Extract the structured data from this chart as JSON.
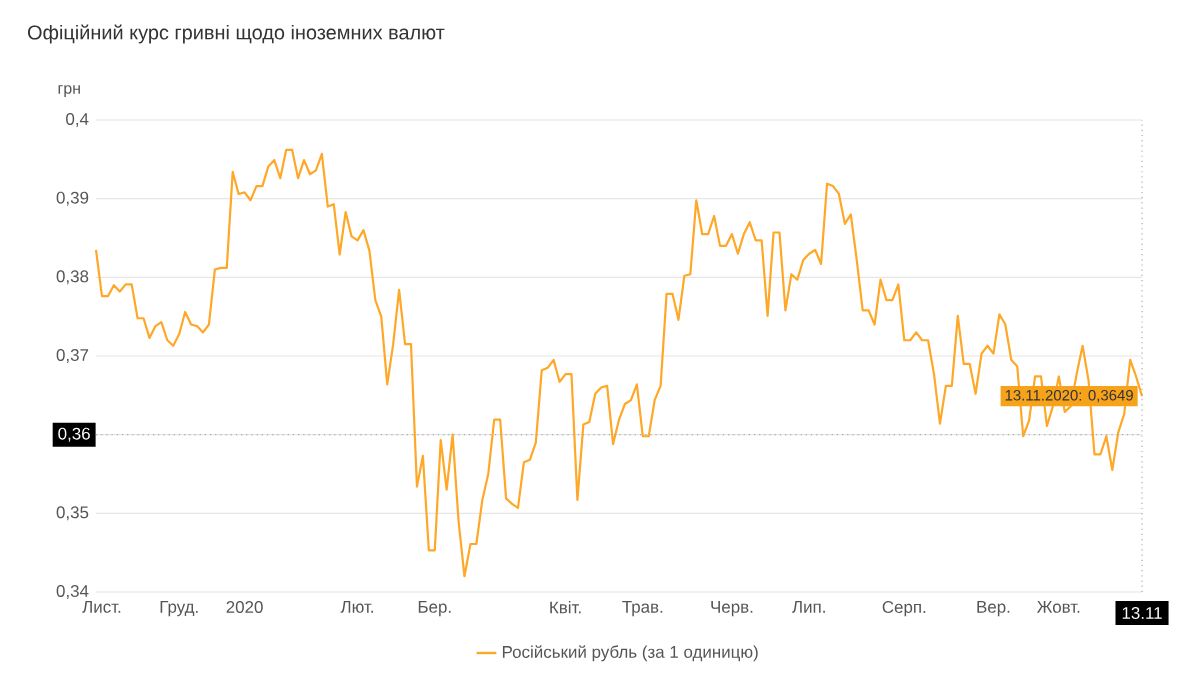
{
  "chart_data": {
    "type": "line",
    "title": "Офіційний курс гривні щодо іноземних валют",
    "ylabel": "грн",
    "categories": [
      null,
      "Лист.",
      null,
      null,
      null,
      null,
      null,
      null,
      null,
      null,
      null,
      null,
      null,
      null,
      "Груд.",
      null,
      null,
      null,
      null,
      null,
      null,
      null,
      null,
      null,
      null,
      "2020",
      null,
      null,
      null,
      null,
      null,
      null,
      null,
      null,
      null,
      null,
      null,
      null,
      null,
      null,
      null,
      null,
      null,
      null,
      "Лют.",
      null,
      null,
      null,
      null,
      null,
      null,
      null,
      null,
      null,
      null,
      null,
      null,
      "Бер.",
      null,
      null,
      null,
      null,
      null,
      null,
      null,
      null,
      null,
      null,
      null,
      null,
      null,
      null,
      null,
      null,
      null,
      null,
      null,
      null,
      null,
      "Квіт.",
      null,
      null,
      null,
      null,
      null,
      null,
      null,
      null,
      null,
      null,
      null,
      null,
      "Трав.",
      null,
      null,
      null,
      null,
      null,
      null,
      null,
      null,
      null,
      null,
      null,
      null,
      null,
      null,
      "Черв.",
      null,
      null,
      null,
      null,
      null,
      null,
      null,
      null,
      null,
      null,
      null,
      null,
      "Лип.",
      null,
      null,
      null,
      null,
      null,
      null,
      null,
      null,
      null,
      null,
      null,
      null,
      null,
      null,
      null,
      "Серп.",
      null,
      null,
      null,
      null,
      null,
      null,
      null,
      null,
      null,
      null,
      null,
      null,
      null,
      null,
      "Вер.",
      null,
      null,
      null,
      null,
      null,
      null,
      null,
      null,
      null,
      null,
      "Жовт.",
      null,
      null,
      null,
      null,
      null,
      null,
      null,
      null,
      null,
      null,
      null,
      null,
      null,
      "13.11"
    ],
    "ylim": [
      0.34,
      0.4
    ],
    "yticks": [
      {
        "value": 0.34,
        "label": "0,34"
      },
      {
        "value": 0.35,
        "label": "0,35"
      },
      {
        "value": 0.36,
        "label": "0,36"
      },
      {
        "value": 0.37,
        "label": "0,37"
      },
      {
        "value": 0.38,
        "label": "0,38"
      },
      {
        "value": 0.39,
        "label": "0,39"
      },
      {
        "value": 0.4,
        "label": "0,4"
      }
    ],
    "grid": "y",
    "legend": "bottom",
    "series": [
      {
        "name": "Російський рубль (за 1 одиницю)",
        "color": "#ffa726",
        "values": [
          0.3835,
          0.3776,
          0.3776,
          0.379,
          0.3782,
          0.3791,
          0.3791,
          0.3748,
          0.3748,
          0.3723,
          0.3738,
          0.3743,
          0.372,
          0.3713,
          0.3728,
          0.3756,
          0.374,
          0.3738,
          0.373,
          0.374,
          0.381,
          0.3812,
          0.3812,
          0.3934,
          0.3906,
          0.3908,
          0.3898,
          0.3916,
          0.3916,
          0.3941,
          0.3949,
          0.3926,
          0.3962,
          0.3962,
          0.3926,
          0.3949,
          0.3931,
          0.3936,
          0.3957,
          0.389,
          0.3893,
          0.3829,
          0.3883,
          0.3852,
          0.3847,
          0.386,
          0.3834,
          0.3771,
          0.375,
          0.3664,
          0.3715,
          0.3784,
          0.3715,
          0.3715,
          0.3534,
          0.3573,
          0.3453,
          0.3453,
          0.3593,
          0.353,
          0.36,
          0.349,
          0.342,
          0.3461,
          0.3461,
          0.3517,
          0.355,
          0.3619,
          0.3619,
          0.3519,
          0.3512,
          0.3507,
          0.3565,
          0.3568,
          0.359,
          0.3682,
          0.3685,
          0.3695,
          0.3667,
          0.3677,
          0.3677,
          0.3517,
          0.3613,
          0.3616,
          0.3652,
          0.366,
          0.3662,
          0.3588,
          0.3619,
          0.3639,
          0.3644,
          0.3664,
          0.3598,
          0.3598,
          0.3644,
          0.3662,
          0.3779,
          0.3779,
          0.3746,
          0.3802,
          0.3804,
          0.3898,
          0.3855,
          0.3855,
          0.3878,
          0.384,
          0.384,
          0.3855,
          0.383,
          0.3855,
          0.387,
          0.3847,
          0.3847,
          0.3751,
          0.3857,
          0.3857,
          0.3758,
          0.3804,
          0.3797,
          0.3822,
          0.383,
          0.3835,
          0.3817,
          0.3919,
          0.3916,
          0.3906,
          0.3868,
          0.388,
          0.3822,
          0.3758,
          0.3758,
          0.374,
          0.3797,
          0.3771,
          0.3771,
          0.3791,
          0.372,
          0.372,
          0.373,
          0.372,
          0.372,
          0.3677,
          0.3614,
          0.3662,
          0.3662,
          0.3751,
          0.369,
          0.369,
          0.3652,
          0.3703,
          0.3713,
          0.3703,
          0.3753,
          0.374,
          0.3695,
          0.3687,
          0.3598,
          0.3618,
          0.3674,
          0.3674,
          0.3611,
          0.3636,
          0.3674,
          0.3629,
          0.3636,
          0.3677,
          0.3713,
          0.3669,
          0.3575,
          0.3575,
          0.3598,
          0.3555,
          0.3603,
          0.3626,
          0.3695,
          0.3674,
          0.3649
        ]
      }
    ],
    "ref_lines": [
      {
        "axis": "y",
        "value": 0.36,
        "label": "0,36",
        "color": "#aaaaaa",
        "line_style": "dotted"
      },
      {
        "axis": "x",
        "value": "13.11",
        "color": "#aaaaaa",
        "line_style": "dotted"
      }
    ],
    "annotations": [
      {
        "text": "13.11.2020: 0,3649",
        "x": "13.11",
        "y": 0.3649
      }
    ]
  }
}
